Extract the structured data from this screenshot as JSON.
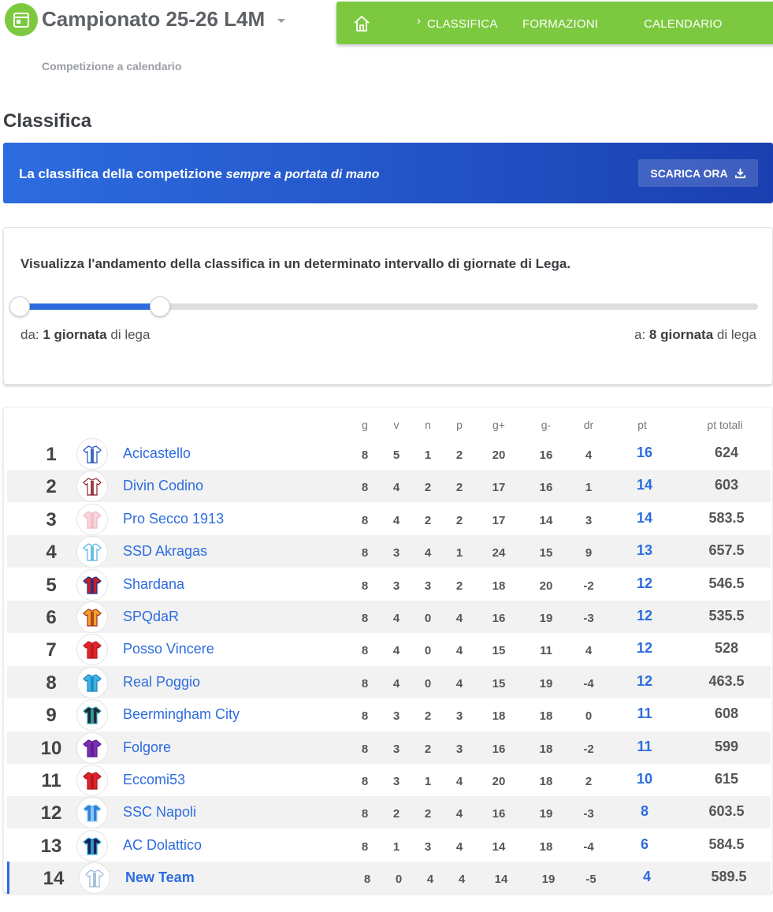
{
  "header": {
    "title": "Campionato 25-26 L4M",
    "subtitle": "Competizione a calendario",
    "icon": "calendar-icon",
    "brand_color": "#7cc940"
  },
  "nav": {
    "home_icon": "home-icon",
    "items": [
      "CLASSIFICA",
      "FORMAZIONI",
      "CALENDARIO"
    ],
    "active": "CLASSIFICA"
  },
  "page": {
    "title": "Classifica"
  },
  "banner": {
    "text_strong": "La classifica della competizione",
    "text_em": "sempre a portata di mano",
    "button_label": "SCARICA ORA",
    "button_icon": "download-icon",
    "accent": "#2d6cdf"
  },
  "range": {
    "title": "Visualizza l'andamento della classifica in un determinato intervallo di giornate di Lega.",
    "from_prefix": "da:",
    "from_value": "1 giornata",
    "from_suffix": "di lega",
    "to_prefix": "a:",
    "to_value": "8 giornata",
    "to_suffix": "di lega",
    "from_giornata": 1,
    "to_giornata": 8,
    "selected_fraction": 0.19
  },
  "table": {
    "columns": [
      "g",
      "v",
      "n",
      "p",
      "g+",
      "g-",
      "dr",
      "pt",
      "pt totali"
    ],
    "rows": [
      {
        "pos": "1",
        "team": "Acicastello",
        "g": "8",
        "v": "5",
        "n": "1",
        "p": "2",
        "gf": "20",
        "gs": "16",
        "dr": "4",
        "pt": "16",
        "ptt": "624",
        "kit": [
          "#ffffff",
          "#1e4fb8"
        ]
      },
      {
        "pos": "2",
        "team": "Divin Codino",
        "g": "8",
        "v": "4",
        "n": "2",
        "p": "2",
        "gf": "17",
        "gs": "16",
        "dr": "1",
        "pt": "14",
        "ptt": "603",
        "kit": [
          "#ffffff",
          "#8b1e2b"
        ]
      },
      {
        "pos": "3",
        "team": "Pro Secco 1913",
        "g": "8",
        "v": "4",
        "n": "2",
        "p": "2",
        "gf": "17",
        "gs": "14",
        "dr": "3",
        "pt": "14",
        "ptt": "583.5",
        "kit": [
          "#f6d6dc",
          "#f0b9c3"
        ]
      },
      {
        "pos": "4",
        "team": "SSD Akragas",
        "g": "8",
        "v": "3",
        "n": "4",
        "p": "1",
        "gf": "24",
        "gs": "15",
        "dr": "9",
        "pt": "13",
        "ptt": "657.5",
        "kit": [
          "#ffffff",
          "#4fb3e6"
        ]
      },
      {
        "pos": "5",
        "team": "Shardana",
        "g": "8",
        "v": "3",
        "n": "3",
        "p": "2",
        "gf": "18",
        "gs": "20",
        "dr": "-2",
        "pt": "12",
        "ptt": "546.5",
        "kit": [
          "#c81e28",
          "#1c2f8a"
        ]
      },
      {
        "pos": "6",
        "team": "SPQdaR",
        "g": "8",
        "v": "4",
        "n": "0",
        "p": "4",
        "gf": "16",
        "gs": "19",
        "dr": "-3",
        "pt": "12",
        "ptt": "535.5",
        "kit": [
          "#f2a51e",
          "#a8302e"
        ]
      },
      {
        "pos": "7",
        "team": "Posso Vincere",
        "g": "8",
        "v": "4",
        "n": "0",
        "p": "4",
        "gf": "15",
        "gs": "11",
        "dr": "4",
        "pt": "12",
        "ptt": "528",
        "kit": [
          "#e0262b",
          "#b81a20"
        ]
      },
      {
        "pos": "8",
        "team": "Real Poggio",
        "g": "8",
        "v": "4",
        "n": "0",
        "p": "4",
        "gf": "15",
        "gs": "19",
        "dr": "-4",
        "pt": "12",
        "ptt": "463.5",
        "kit": [
          "#3fb3e8",
          "#1f86c0"
        ]
      },
      {
        "pos": "9",
        "team": "Beermingham City",
        "g": "8",
        "v": "3",
        "n": "2",
        "p": "3",
        "gf": "18",
        "gs": "18",
        "dr": "0",
        "pt": "11",
        "ptt": "608",
        "kit": [
          "#1e2a30",
          "#3aa6b9"
        ]
      },
      {
        "pos": "10",
        "team": "Folgore",
        "g": "8",
        "v": "3",
        "n": "2",
        "p": "3",
        "gf": "16",
        "gs": "18",
        "dr": "-2",
        "pt": "11",
        "ptt": "599",
        "kit": [
          "#7b2fb5",
          "#5a1d8c"
        ]
      },
      {
        "pos": "11",
        "team": "Eccomi53",
        "g": "8",
        "v": "3",
        "n": "1",
        "p": "4",
        "gf": "20",
        "gs": "18",
        "dr": "2",
        "pt": "10",
        "ptt": "615",
        "kit": [
          "#e2222b",
          "#b0151b"
        ]
      },
      {
        "pos": "12",
        "team": "SSC Napoli",
        "g": "8",
        "v": "2",
        "n": "2",
        "p": "4",
        "gf": "16",
        "gs": "19",
        "dr": "-3",
        "pt": "8",
        "ptt": "603.5",
        "kit": [
          "#2f80d8",
          "#9fd0f2"
        ]
      },
      {
        "pos": "13",
        "team": "AC Dolattico",
        "g": "8",
        "v": "1",
        "n": "3",
        "p": "4",
        "gf": "14",
        "gs": "18",
        "dr": "-4",
        "pt": "6",
        "ptt": "584.5",
        "kit": [
          "#1c1c5a",
          "#2fb3d6"
        ]
      },
      {
        "pos": "14",
        "team": "New Team",
        "g": "8",
        "v": "0",
        "n": "4",
        "p": "4",
        "gf": "14",
        "gs": "19",
        "dr": "-5",
        "pt": "4",
        "ptt": "589.5",
        "kit": [
          "#ffffff",
          "#9ab6d6"
        ]
      }
    ]
  }
}
